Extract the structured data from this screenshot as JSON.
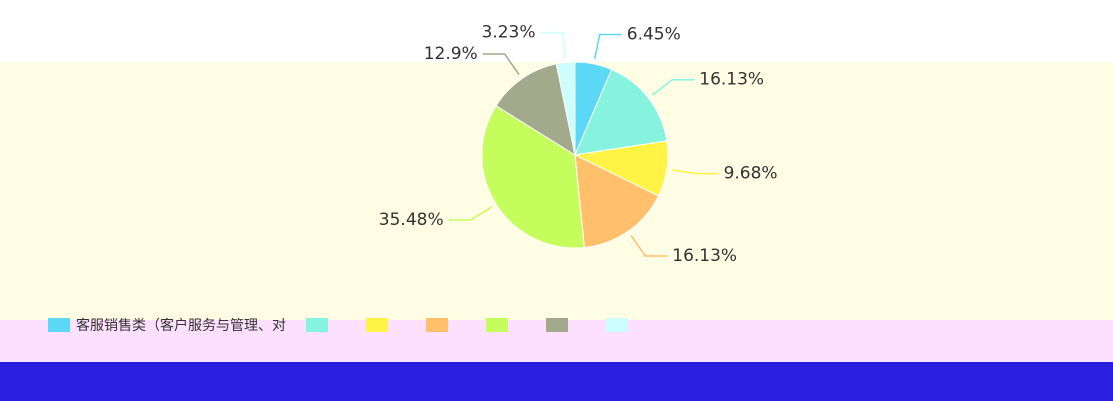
{
  "chart_data": {
    "type": "pie",
    "categories": [
      "客服销售类（客户服务与管理、对",
      null,
      null,
      null,
      null,
      null,
      null
    ],
    "values": [
      6.45,
      16.13,
      9.68,
      16.13,
      35.48,
      12.9,
      3.23
    ],
    "value_labels": [
      "6.45%",
      "16.13%",
      "9.68%",
      "16.13%",
      "35.48%",
      "12.9%",
      "3.23%"
    ],
    "colors": [
      "#5ad8f5",
      "#86f3df",
      "#fff445",
      "#ffbf6b",
      "#c4fd5c",
      "#a3a98b",
      "#cdfdfd"
    ]
  }
}
